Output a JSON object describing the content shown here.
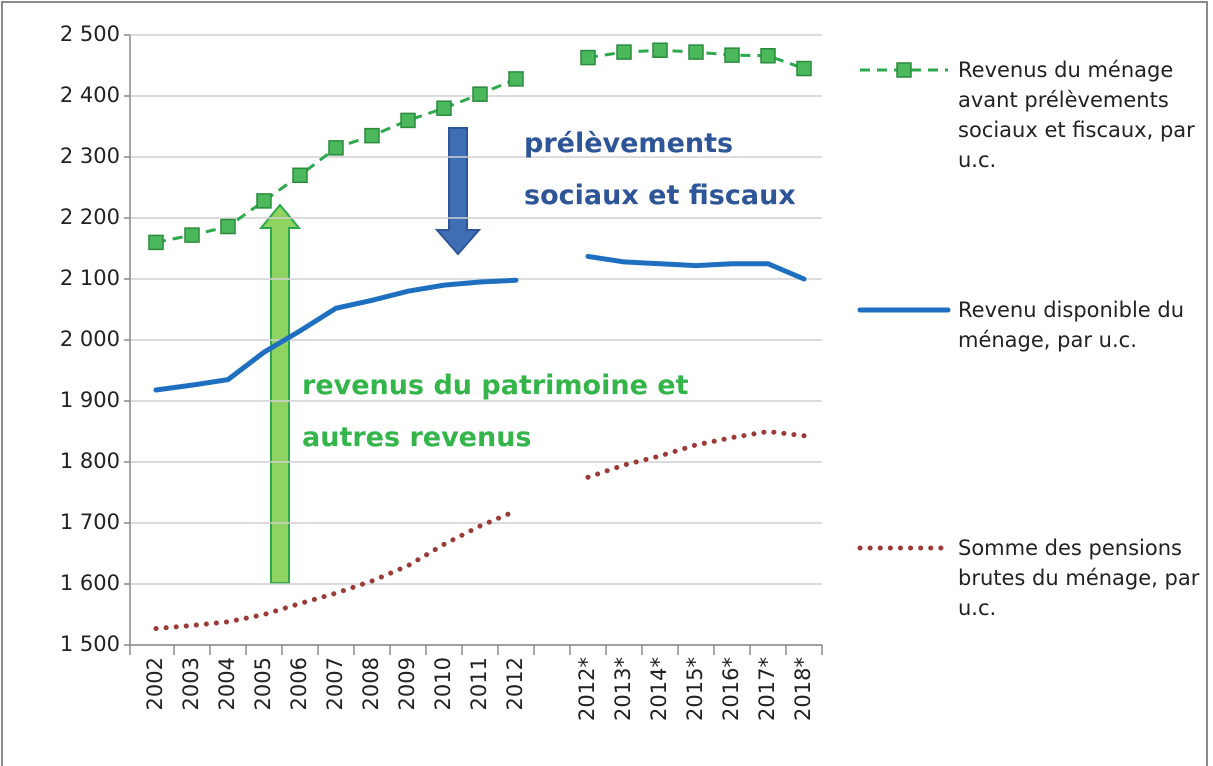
{
  "chart_data": {
    "type": "line",
    "categories": [
      "2002",
      "2003",
      "2004",
      "2005",
      "2006",
      "2007",
      "2008",
      "2009",
      "2010",
      "2011",
      "2012",
      null,
      "2012*",
      "2013*",
      "2014*",
      "2015*",
      "2016*",
      "2017*",
      "2018*"
    ],
    "series": [
      {
        "name": "Revenus du ménage avant prélèvements sociaux et fiscaux, par u.c.",
        "color": "#2ea84c",
        "style": "dashed-square",
        "values": [
          2160,
          2172,
          2186,
          2228,
          2270,
          2315,
          2335,
          2360,
          2380,
          2403,
          2428,
          null,
          2463,
          2472,
          2475,
          2472,
          2467,
          2466,
          2445
        ]
      },
      {
        "name": "Revenu disponible du ménage, par u.c.",
        "color": "#1f6fc0",
        "style": "solid",
        "values": [
          1918,
          1926,
          1935,
          1980,
          2015,
          2052,
          2065,
          2080,
          2090,
          2095,
          2098,
          null,
          2137,
          2128,
          2125,
          2122,
          2125,
          2125,
          2100
        ]
      },
      {
        "name": "Somme des pensions brutes du ménage, par u.c.",
        "color": "#9b3a37",
        "style": "dotted",
        "values": [
          1527,
          1532,
          1538,
          1550,
          1568,
          1585,
          1605,
          1630,
          1665,
          1695,
          1720,
          null,
          1775,
          1795,
          1810,
          1828,
          1840,
          1850,
          1843
        ]
      }
    ],
    "ylim": [
      1500,
      2500
    ],
    "yticks": [
      {
        "value": 1500,
        "label": "1 500"
      },
      {
        "value": 1600,
        "label": "1 600"
      },
      {
        "value": 1700,
        "label": "1 700"
      },
      {
        "value": 1800,
        "label": "1 800"
      },
      {
        "value": 1900,
        "label": "1 900"
      },
      {
        "value": 2000,
        "label": "2 000"
      },
      {
        "value": 2100,
        "label": "2 100"
      },
      {
        "value": 2200,
        "label": "2 200"
      },
      {
        "value": 2300,
        "label": "2 300"
      },
      {
        "value": 2400,
        "label": "2 400"
      },
      {
        "value": 2500,
        "label": "2 500"
      }
    ],
    "grid": true,
    "annotations": [
      {
        "text": "prélèvements sociaux et fiscaux",
        "color": "#2e5597"
      },
      {
        "text": "revenus du patrimoine et autres revenus",
        "color": "#33b54a"
      }
    ]
  }
}
